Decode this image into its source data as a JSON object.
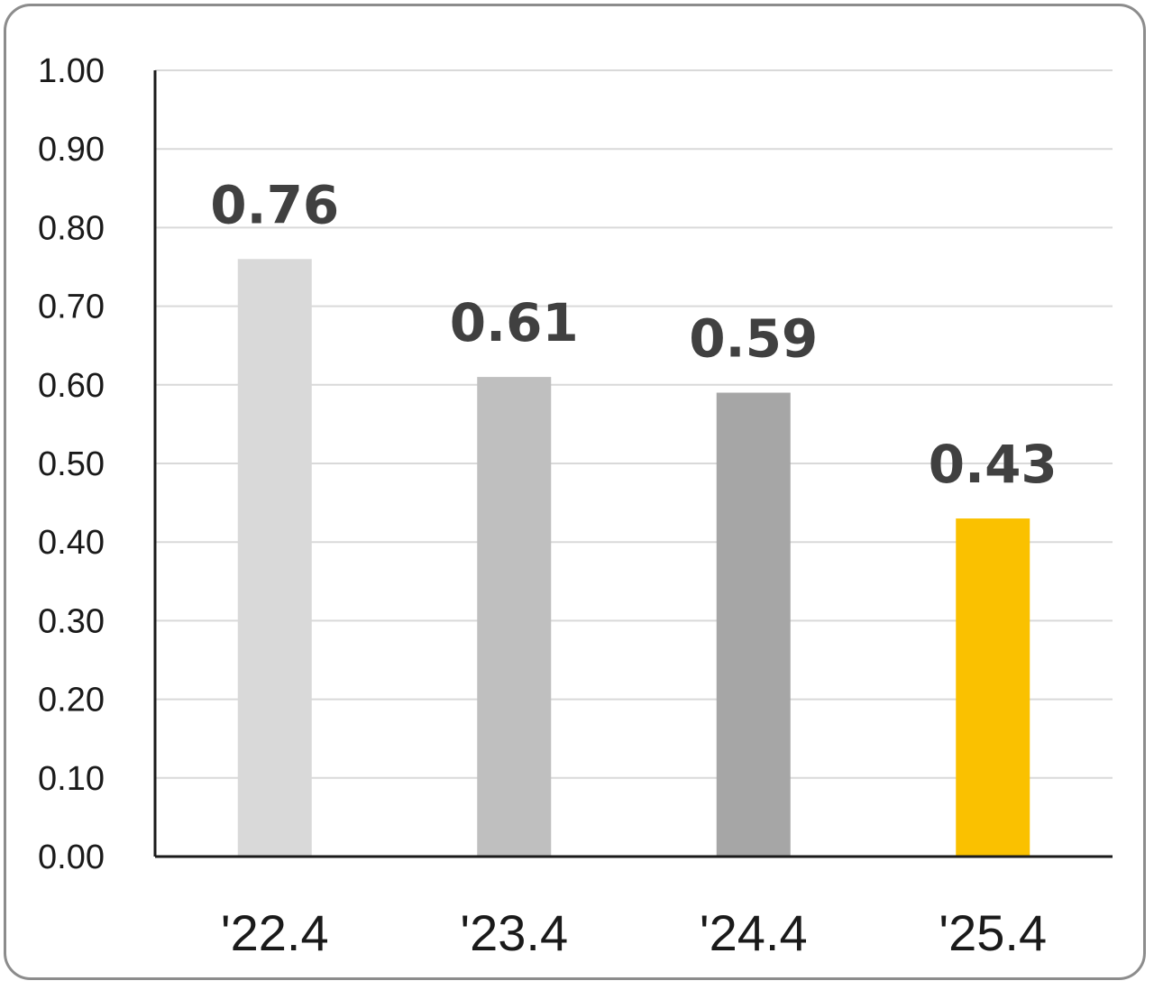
{
  "chart_data": {
    "type": "bar",
    "categories": [
      "'22.4",
      "'23.4",
      "'24.4",
      "'25.4"
    ],
    "values": [
      0.76,
      0.61,
      0.59,
      0.43
    ],
    "value_labels": [
      "0.76",
      "0.61",
      "0.59",
      "0.43"
    ],
    "bar_colors": [
      "#d9d9d9",
      "#bfbfbf",
      "#a6a6a6",
      "#fac100"
    ],
    "ylim": [
      0,
      1
    ],
    "yticks": [
      "0.00",
      "0.10",
      "0.20",
      "0.30",
      "0.40",
      "0.50",
      "0.60",
      "0.70",
      "0.80",
      "0.90",
      "1.00"
    ],
    "grid": true,
    "title": "",
    "xlabel": "",
    "ylabel": ""
  }
}
